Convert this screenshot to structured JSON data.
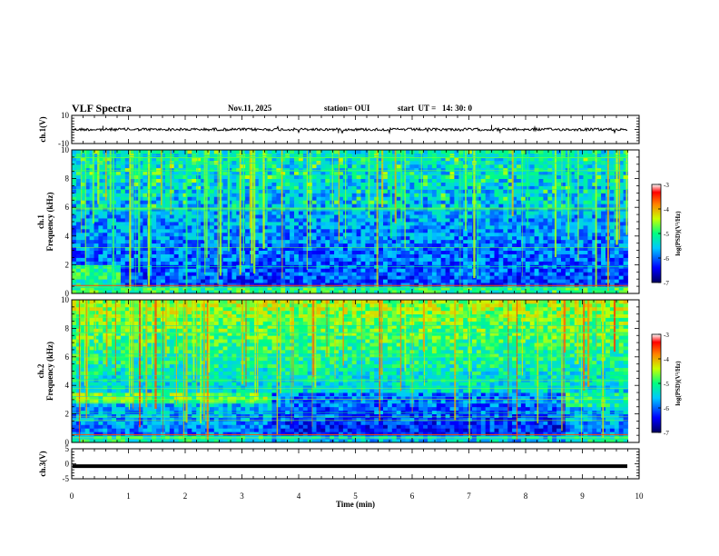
{
  "header": {
    "title": "VLF Spectra",
    "date": "Nov.11, 2025",
    "station": "station= OUI",
    "start": "start  UT =   14: 30: 0"
  },
  "chart_data": [
    {
      "type": "line",
      "panel": "ch1-waveform",
      "ylabel": "ch.1(V)",
      "ylim": [
        -10,
        10
      ],
      "yticks": [
        "10",
        "-10"
      ],
      "xlim": [
        0,
        10
      ],
      "baseline_value": 0,
      "trace_extent_min": 9.8,
      "trace_color": "#000000"
    },
    {
      "type": "heatmap",
      "panel": "ch1-spectrogram",
      "ylabel": "ch.1 Frequency  (kHz)",
      "ylim": [
        0,
        10
      ],
      "yticks": [
        "0",
        "2",
        "4",
        "6",
        "8",
        "10"
      ],
      "xlim": [
        0,
        10
      ],
      "data_extent_min": 9.8,
      "colorbar": {
        "label": "log(PSD)(V²/Hz)",
        "range": [
          -7,
          -3
        ],
        "ticks": [
          "-3",
          "-4",
          "-5",
          "-6",
          "-7"
        ]
      }
    },
    {
      "type": "heatmap",
      "panel": "ch2-spectrogram",
      "ylabel": "ch.2 Frequency  (kHz)",
      "ylim": [
        0,
        10
      ],
      "yticks": [
        "0",
        "2",
        "4",
        "6",
        "8",
        "10"
      ],
      "xlim": [
        0,
        10
      ],
      "data_extent_min": 9.8,
      "colorbar": {
        "label": "log(PSD)(V²/Hz)",
        "range": [
          -7,
          -3
        ],
        "ticks": [
          "-3",
          "-4",
          "-5",
          "-6",
          "-7"
        ]
      }
    },
    {
      "type": "line",
      "panel": "ch3-waveform",
      "ylabel": "ch.3(V)",
      "ylim": [
        -5,
        5
      ],
      "yticks": [
        "5",
        "0",
        "-5"
      ],
      "xlim": [
        0,
        10
      ],
      "baseline_value": -0.8,
      "trace_extent_min": 9.8,
      "trace_color": "#000000"
    }
  ],
  "xaxis": {
    "label": "Time  (min)",
    "ticks": [
      "0",
      "1",
      "2",
      "3",
      "4",
      "5",
      "6",
      "7",
      "8",
      "9",
      "10"
    ]
  }
}
